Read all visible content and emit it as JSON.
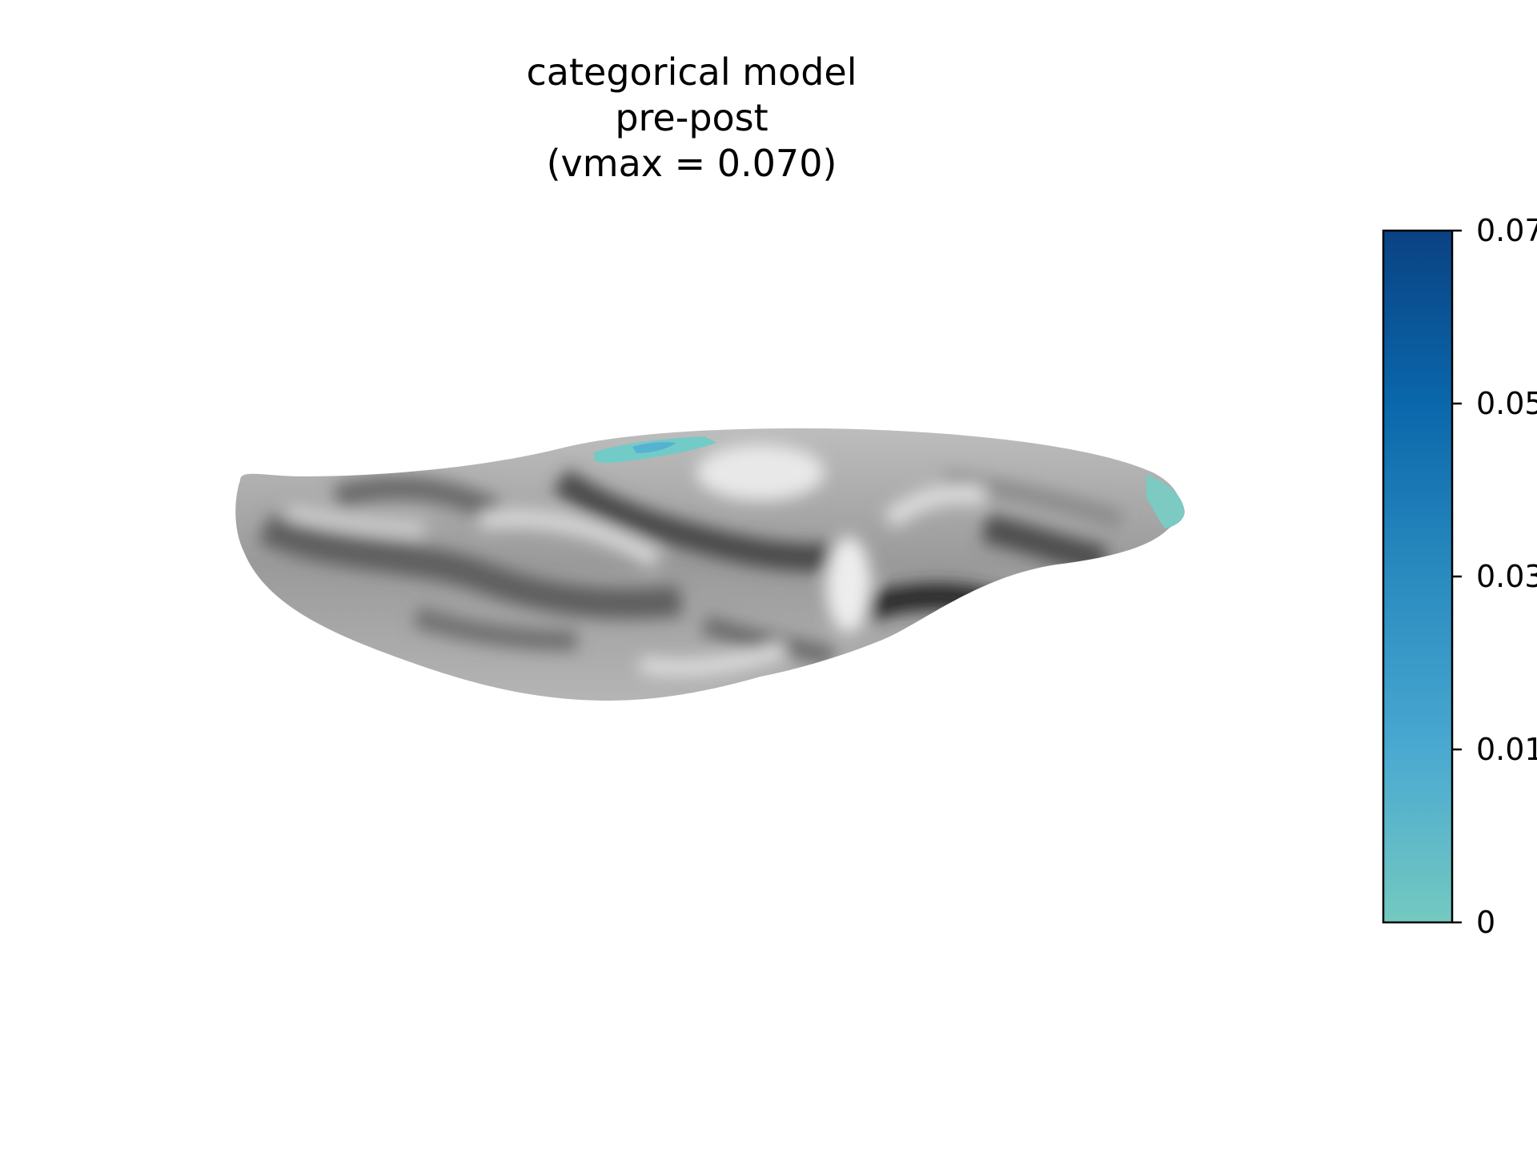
{
  "figure": {
    "title_lines": [
      "categorical model",
      "pre-post",
      "(vmax = 0.070)"
    ]
  },
  "colorbar": {
    "colors": [
      "#74c9c0",
      "#4aa9d1",
      "#2a8bbf",
      "#0a67ab",
      "#0a4283"
    ],
    "tick_labels": [
      "0",
      "0.01",
      "0.03",
      "0.05",
      "0.07"
    ],
    "min": 0,
    "max": 0.07
  },
  "surface": {
    "view": "inflated cortical surface, ventral view",
    "base_color": "#a8a8a8",
    "highlight_color": "#72cbc6"
  }
}
